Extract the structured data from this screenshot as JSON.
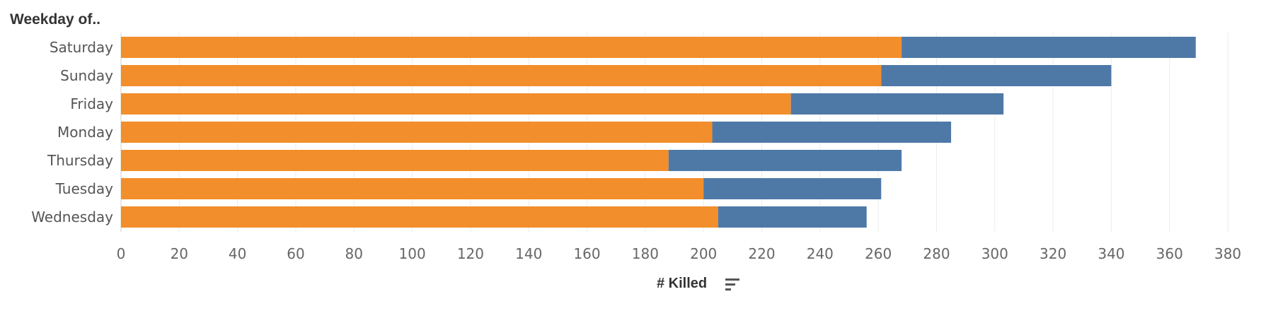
{
  "header": {
    "title": "Weekday of.."
  },
  "sort_icon": "sort-descending-icon",
  "chart_data": {
    "type": "bar",
    "orientation": "horizontal",
    "stacked": true,
    "categories": [
      "Saturday",
      "Sunday",
      "Friday",
      "Monday",
      "Thursday",
      "Tuesday",
      "Wednesday"
    ],
    "series": [
      {
        "color": "#f28e2b",
        "values": [
          268,
          261,
          230,
          203,
          188,
          200,
          205
        ]
      },
      {
        "color": "#4e79a7",
        "values": [
          101,
          79,
          73,
          82,
          80,
          61,
          51
        ]
      }
    ],
    "xlabel": "# Killed",
    "ylabel": "Weekday of..",
    "xticks": [
      0,
      20,
      40,
      60,
      80,
      100,
      120,
      140,
      160,
      180,
      200,
      220,
      240,
      260,
      280,
      300,
      320,
      340,
      360,
      380
    ],
    "xlim": [
      0,
      390
    ],
    "grid": true,
    "legend": "none"
  }
}
